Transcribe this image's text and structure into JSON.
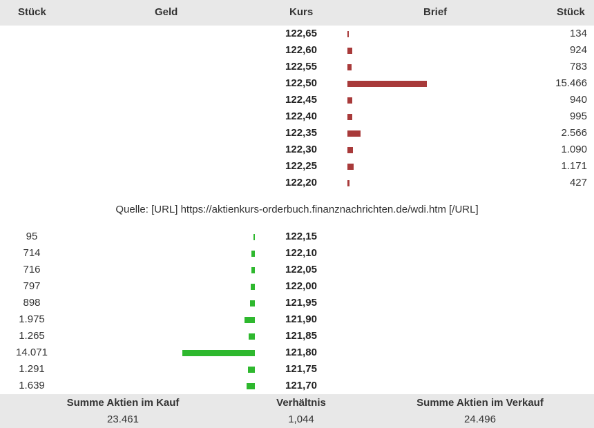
{
  "header": {
    "stueck_left": "Stück",
    "geld": "Geld",
    "kurs": "Kurs",
    "brief": "Brief",
    "stueck_right": "Stück"
  },
  "colors": {
    "ask_bar": "#a83a3a",
    "bid_bar": "#2eb82e",
    "header_bg": "#e8e8e8"
  },
  "asks": [
    {
      "price": "122,65",
      "qty": "134",
      "q": 134
    },
    {
      "price": "122,60",
      "qty": "924",
      "q": 924
    },
    {
      "price": "122,55",
      "qty": "783",
      "q": 783
    },
    {
      "price": "122,50",
      "qty": "15.466",
      "q": 15466
    },
    {
      "price": "122,45",
      "qty": "940",
      "q": 940
    },
    {
      "price": "122,40",
      "qty": "995",
      "q": 995
    },
    {
      "price": "122,35",
      "qty": "2.566",
      "q": 2566
    },
    {
      "price": "122,30",
      "qty": "1.090",
      "q": 1090
    },
    {
      "price": "122,25",
      "qty": "1.171",
      "q": 1171
    },
    {
      "price": "122,20",
      "qty": "427",
      "q": 427
    }
  ],
  "source": "Quelle: [URL] https://aktienkurs-orderbuch.finanznachrichten.de/wdi.htm [/URL]",
  "bids": [
    {
      "price": "122,15",
      "qty": "95",
      "q": 95
    },
    {
      "price": "122,10",
      "qty": "714",
      "q": 714
    },
    {
      "price": "122,05",
      "qty": "716",
      "q": 716
    },
    {
      "price": "122,00",
      "qty": "797",
      "q": 797
    },
    {
      "price": "121,95",
      "qty": "898",
      "q": 898
    },
    {
      "price": "121,90",
      "qty": "1.975",
      "q": 1975
    },
    {
      "price": "121,85",
      "qty": "1.265",
      "q": 1265
    },
    {
      "price": "121,80",
      "qty": "14.071",
      "q": 14071
    },
    {
      "price": "121,75",
      "qty": "1.291",
      "q": 1291
    },
    {
      "price": "121,70",
      "qty": "1.639",
      "q": 1639
    }
  ],
  "footer": {
    "kauf_label": "Summe Aktien im Kauf",
    "kauf_value": "23.461",
    "ratio_label": "Verhältnis",
    "ratio_value": "1,044",
    "verkauf_label": "Summe Aktien im Verkauf",
    "verkauf_value": "24.496"
  }
}
